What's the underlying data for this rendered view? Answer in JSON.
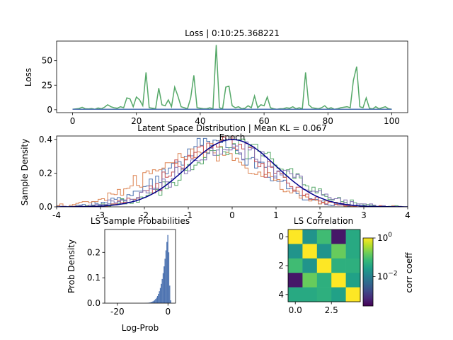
{
  "colors": {
    "loss_train": "#55a868",
    "loss_val": "#4c72b0",
    "series": [
      "#4c72b0",
      "#dd8452",
      "#55a868",
      "#c44e52",
      "#8172b3"
    ],
    "normal": "#00008b",
    "hist": "#4c72b0"
  },
  "chart_data": [
    {
      "type": "line",
      "title": "Loss | 0:10:25.368221",
      "xlabel": "Epoch",
      "ylabel": "Loss",
      "xlim": [
        -5,
        105
      ],
      "ylim": [
        -3,
        70
      ],
      "xticks": [
        0,
        20,
        40,
        60,
        80,
        100
      ],
      "yticks": [
        0,
        25,
        50
      ],
      "series": [
        {
          "x": [
            0,
            1,
            2,
            3,
            4,
            5,
            6,
            7,
            8,
            9,
            10,
            11,
            12,
            13,
            14,
            15,
            16,
            17,
            18,
            19,
            20,
            21,
            22,
            23,
            24,
            25,
            26,
            27,
            28,
            29,
            30,
            31,
            32,
            33,
            34,
            35,
            36,
            37,
            38,
            39,
            40,
            41,
            42,
            43,
            44,
            45,
            46,
            47,
            48,
            49,
            50,
            51,
            52,
            53,
            54,
            55,
            56,
            57,
            58,
            59,
            60,
            61,
            62,
            63,
            64,
            65,
            66,
            67,
            68,
            69,
            70,
            71,
            72,
            73,
            74,
            75,
            76,
            77,
            78,
            79,
            80,
            81,
            82,
            83,
            84,
            85,
            86,
            87,
            88,
            89,
            90,
            91,
            92,
            93,
            94,
            95,
            96,
            97,
            98,
            99,
            100
          ],
          "values": [
            0.5,
            0.8,
            1.2,
            2.5,
            1,
            0.8,
            1.2,
            0.5,
            1.8,
            1,
            2.5,
            5,
            3,
            2,
            1.5,
            3,
            2,
            12,
            11,
            3,
            13,
            10,
            4,
            38,
            2,
            1.5,
            1,
            22,
            5,
            4,
            10,
            3,
            23,
            14,
            3,
            2,
            1,
            12,
            35,
            2,
            1.5,
            1,
            1,
            2,
            1,
            66,
            2,
            1,
            23,
            24,
            4,
            2,
            3,
            1,
            1.5,
            4,
            2,
            14,
            2,
            5,
            4,
            13,
            2,
            1,
            0.5,
            1,
            1,
            2,
            1.5,
            3,
            1,
            2,
            1,
            38,
            5,
            2,
            1.5,
            1,
            2,
            4,
            1,
            2,
            0.5,
            1,
            2,
            2.5,
            3,
            2,
            30,
            44,
            3,
            2,
            12,
            1.5,
            0.8,
            3,
            1,
            2,
            3,
            1,
            0.5
          ]
        },
        {
          "x": [
            0,
            100
          ],
          "values": [
            0.5,
            0.5
          ]
        }
      ]
    },
    {
      "type": "line",
      "title": "Latent Space Distribution | Mean KL = 0.067",
      "xlabel": "",
      "ylabel": "Sample Density",
      "xlim": [
        -4,
        4
      ],
      "ylim": [
        0,
        0.42
      ],
      "xticks": [
        -4,
        -3,
        -2,
        -1,
        0,
        1,
        2,
        3,
        4
      ],
      "yticks": [
        0.0,
        0.2,
        0.4
      ],
      "series": [
        {
          "mu": -0.4,
          "sigma": 1.05,
          "values_note": ""
        },
        {
          "mu": -0.6,
          "sigma": 1.2
        },
        {
          "mu": 0.1,
          "sigma": 1.1
        },
        {
          "mu": -0.2,
          "sigma": 1.0
        },
        {
          "mu": 0.0,
          "sigma": 1.15
        }
      ],
      "reference": {
        "mu": 0,
        "sigma": 1
      }
    },
    {
      "type": "bar",
      "title": "LS Sample Probabilities",
      "xlabel": "Log-Prob",
      "ylabel": "Prob Density",
      "xlim": [
        -25,
        3
      ],
      "ylim": [
        0,
        0.29
      ],
      "xticks": [
        -20,
        0
      ],
      "yticks": [
        0.0,
        0.1,
        0.2
      ],
      "distribution": {
        "mode": 0,
        "peak": 0.27
      }
    },
    {
      "type": "heatmap",
      "title": "LS Correlation",
      "xlabel": "",
      "ylabel": "",
      "xticks": [
        0.0,
        2.5
      ],
      "yticks": [
        0,
        2,
        4
      ],
      "colorbar_label": "corr coeff",
      "colorbar_ticks": [
        "10^0",
        "10^-2"
      ],
      "matrix": [
        [
          1.0,
          0.02,
          0.08,
          0.0005,
          0.04
        ],
        [
          0.02,
          1.0,
          0.02,
          0.15,
          0.04
        ],
        [
          0.08,
          0.02,
          1.0,
          0.05,
          0.05
        ],
        [
          0.0005,
          0.15,
          0.05,
          1.0,
          0.03
        ],
        [
          0.04,
          0.04,
          0.05,
          0.03,
          1.0
        ]
      ],
      "colorscale": "log",
      "vmin": 0.0003,
      "vmax": 1.0
    }
  ]
}
